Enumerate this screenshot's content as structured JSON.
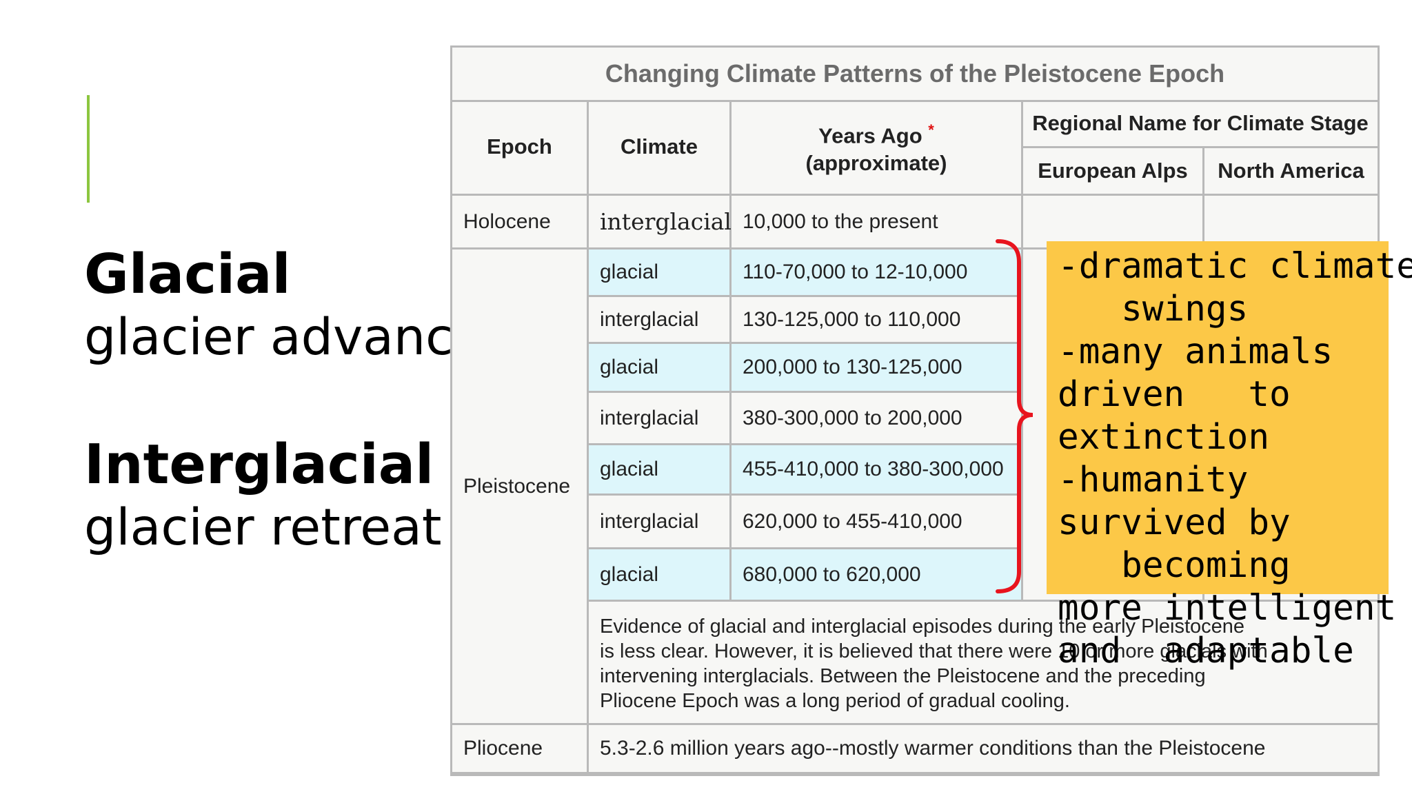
{
  "left": {
    "glacial_heading": "Glacial",
    "glacial_sub": "glacier advance",
    "interglacial_heading": "Interglacial",
    "interglacial_sub": "glacier retreat"
  },
  "table": {
    "title": "Changing Climate Patterns of the Pleistocene Epoch",
    "headers": {
      "epoch": "Epoch",
      "climate": "Climate",
      "years_line1": "Years Ago",
      "years_star": "*",
      "years_line2": "(approximate)",
      "regional": "Regional Name for Climate Stage",
      "alps": "European Alps",
      "north_america": "North America"
    },
    "holocene": {
      "epoch": "Holocene",
      "climate": "interglacial",
      "years": "10,000 to the present"
    },
    "pleistocene_label": "Pleistocene",
    "rows": [
      {
        "climate": "glacial",
        "years": "110-70,000 to 12-10,000"
      },
      {
        "climate": "interglacial",
        "years": "130-125,000 to 110,000"
      },
      {
        "climate": "glacial",
        "years": "200,000 to 130-125,000"
      },
      {
        "climate": "interglacial",
        "years": "380-300,000 to 200,000"
      },
      {
        "climate": "glacial",
        "years": "455-410,000 to 380-300,000"
      },
      {
        "climate": "interglacial",
        "years": "620,000 to 455-410,000"
      },
      {
        "climate": "glacial",
        "years": "680,000 to 620,000"
      }
    ],
    "note_lines": [
      "Evidence of glacial and interglacial episodes during the early Pleistocene",
      "is less clear.  However, it is believed that there were 10 or more glacials with",
      "intervening interglacials.  Between the Pleistocene and the preceding",
      "Pliocene Epoch was a long period of gradual cooling."
    ],
    "pliocene": {
      "epoch": "Pliocene",
      "text": "5.3-2.6 million years ago--mostly warmer conditions than the Pleistocene"
    }
  },
  "callout": {
    "lines": [
      "-dramatic climate",
      "   swings",
      "-many animals",
      "driven   to",
      "extinction",
      "-humanity",
      "survived by",
      "   becoming",
      "more intelligent",
      "and  adaptable"
    ]
  },
  "colors": {
    "accent": "#8cc63f",
    "callout_bg": "#fcc847",
    "bracket": "#e8141e",
    "row_blue": "#ddf6fb"
  }
}
